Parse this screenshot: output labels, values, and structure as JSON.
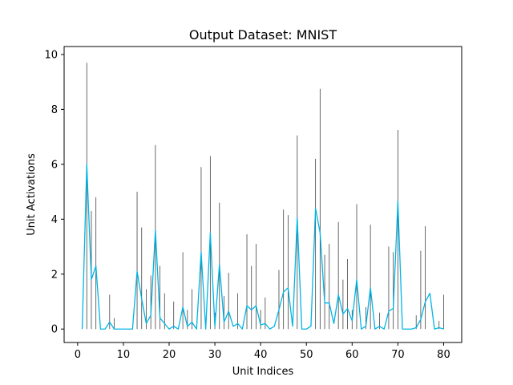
{
  "chart_data": {
    "type": "line",
    "title": "Output Dataset: MNIST",
    "xlabel": "Unit Indices",
    "ylabel": "Unit Activations",
    "xlim": [
      -2.95,
      83.95
    ],
    "ylim": [
      -0.49,
      10.29
    ],
    "xticks": [
      0,
      10,
      20,
      30,
      40,
      50,
      60,
      70,
      80
    ],
    "yticks": [
      0,
      2,
      4,
      6,
      8,
      10
    ],
    "x": [
      1,
      2,
      3,
      4,
      5,
      6,
      7,
      8,
      9,
      10,
      11,
      12,
      13,
      14,
      15,
      16,
      17,
      18,
      19,
      20,
      21,
      22,
      23,
      24,
      25,
      26,
      27,
      28,
      29,
      30,
      31,
      32,
      33,
      34,
      35,
      36,
      37,
      38,
      39,
      40,
      41,
      42,
      43,
      44,
      45,
      46,
      47,
      48,
      49,
      50,
      51,
      52,
      53,
      54,
      55,
      56,
      57,
      58,
      59,
      60,
      61,
      62,
      63,
      64,
      65,
      66,
      67,
      68,
      69,
      70,
      71,
      72,
      73,
      74,
      75,
      76,
      77,
      78,
      79,
      80
    ],
    "series": [
      {
        "color": "#00b4e6",
        "kind": "line",
        "values": [
          0.0,
          6.0,
          1.8,
          2.3,
          0.0,
          0.0,
          0.25,
          0.0,
          0.0,
          0.0,
          0.0,
          0.0,
          2.1,
          1.1,
          0.2,
          0.5,
          3.6,
          0.4,
          0.2,
          0.0,
          0.1,
          0.0,
          0.8,
          0.1,
          0.25,
          0.0,
          2.8,
          0.0,
          3.5,
          0.1,
          2.35,
          0.25,
          0.65,
          0.1,
          0.2,
          0.0,
          0.85,
          0.7,
          0.85,
          0.15,
          0.2,
          0.0,
          0.1,
          0.7,
          1.35,
          1.5,
          0.1,
          4.05,
          0.0,
          0.0,
          0.1,
          4.4,
          3.5,
          0.95,
          0.95,
          0.2,
          1.25,
          0.55,
          0.75,
          0.3,
          1.8,
          0.0,
          0.1,
          1.5,
          0.0,
          0.1,
          0.0,
          0.65,
          0.75,
          4.65,
          0.0,
          0.0,
          0.0,
          0.05,
          0.35,
          1.0,
          1.3,
          0.0,
          0.05,
          0.0
        ]
      },
      {
        "color": "#444444",
        "kind": "spikes",
        "values": [
          0.0,
          9.7,
          4.3,
          4.8,
          0.0,
          0.0,
          1.25,
          0.4,
          0.0,
          0.0,
          0.0,
          0.0,
          5.0,
          3.7,
          1.45,
          1.95,
          6.7,
          2.3,
          1.3,
          0.0,
          1.0,
          0.0,
          2.8,
          0.7,
          1.45,
          0.0,
          5.9,
          0.0,
          6.3,
          0.6,
          4.6,
          1.2,
          2.05,
          0.0,
          1.3,
          0.0,
          3.45,
          2.3,
          3.1,
          0.7,
          1.15,
          0.0,
          0.0,
          2.15,
          4.35,
          4.15,
          0.0,
          7.05,
          0.0,
          0.0,
          0.0,
          6.2,
          8.75,
          2.7,
          3.1,
          0.0,
          3.9,
          1.8,
          2.55,
          0.7,
          4.55,
          0.0,
          0.8,
          3.8,
          0.0,
          0.6,
          0.0,
          3.0,
          2.8,
          7.25,
          0.0,
          0.0,
          0.0,
          0.5,
          2.85,
          3.75,
          0.0,
          0.0,
          0.3,
          1.25
        ]
      }
    ],
    "grid": false,
    "legend": "none"
  }
}
